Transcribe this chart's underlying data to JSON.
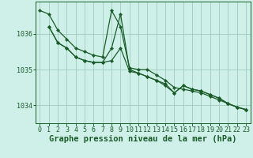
{
  "bg_color": "#cff0e8",
  "grid_color": "#a0ccbb",
  "line_color": "#1a5c2a",
  "marker_color": "#1a5c2a",
  "xlabel": "Graphe pression niveau de la mer (hPa)",
  "xlabel_fontsize": 7.5,
  "tick_fontsize": 6.0,
  "yticks": [
    1034,
    1035,
    1036
  ],
  "ylim": [
    1033.5,
    1036.9
  ],
  "xlim": [
    -0.5,
    23.5
  ],
  "xticks": [
    0,
    1,
    2,
    3,
    4,
    5,
    6,
    7,
    8,
    9,
    10,
    11,
    12,
    13,
    14,
    15,
    16,
    17,
    18,
    19,
    20,
    21,
    22,
    23
  ],
  "line1_x": [
    0,
    1,
    2,
    3,
    4,
    5,
    6,
    7,
    8,
    9,
    10,
    11,
    12,
    13,
    14,
    15,
    16,
    17,
    18,
    19,
    20,
    21,
    22,
    23
  ],
  "line1_y": [
    1036.65,
    1036.55,
    1036.1,
    1035.85,
    1035.6,
    1035.5,
    1035.4,
    1035.35,
    1036.65,
    1036.2,
    1035.05,
    1035.0,
    1035.0,
    1034.85,
    1034.7,
    1034.5,
    1034.45,
    1034.4,
    1034.35,
    1034.25,
    1034.15,
    1034.05,
    1033.95,
    1033.88
  ],
  "line2_x": [
    1,
    2,
    3,
    4,
    5,
    6,
    7,
    8,
    9,
    10,
    11,
    12,
    13,
    14,
    15,
    16,
    17,
    18,
    19,
    20,
    21,
    22,
    23
  ],
  "line2_y": [
    1036.2,
    1035.75,
    1035.6,
    1035.35,
    1035.25,
    1035.2,
    1035.2,
    1035.25,
    1035.6,
    1034.95,
    1034.9,
    1034.8,
    1034.7,
    1034.6,
    1034.35,
    1034.55,
    1034.45,
    1034.4,
    1034.3,
    1034.2,
    1034.05,
    1033.95,
    1033.88
  ],
  "line3_x": [
    1,
    2,
    3,
    4,
    5,
    6,
    7,
    8,
    9,
    10,
    11,
    12,
    13,
    14,
    15,
    16,
    17,
    18,
    19,
    20,
    21,
    22,
    23
  ],
  "line3_y": [
    1036.2,
    1035.75,
    1035.6,
    1035.35,
    1035.25,
    1035.2,
    1035.2,
    1035.6,
    1036.55,
    1035.0,
    1034.9,
    1034.8,
    1034.7,
    1034.55,
    1034.35,
    1034.55,
    1034.45,
    1034.4,
    1034.3,
    1034.2,
    1034.05,
    1033.95,
    1033.88
  ]
}
